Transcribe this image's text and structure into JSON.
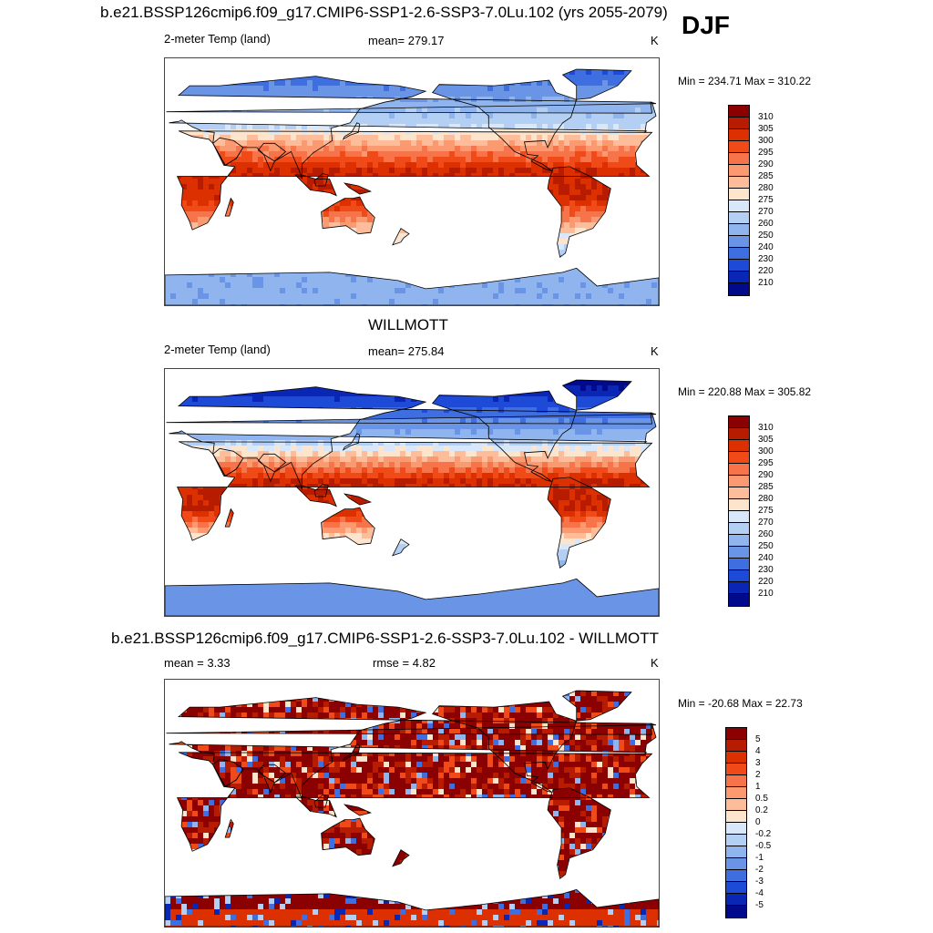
{
  "season": "DJF",
  "panels": [
    {
      "title": "b.e21.BSSP126cmip6.f09_g17.CMIP6-SSP1-2.6-SSP3-7.0Lu.102 (yrs 2055-2079)",
      "left": "2-meter Temp (land)",
      "center": "mean= 279.17",
      "units": "K",
      "minmax": "Min = 234.71 Max = 310.22",
      "levels": [
        "310",
        "305",
        "300",
        "295",
        "290",
        "285",
        "280",
        "275",
        "270",
        "260",
        "250",
        "240",
        "230",
        "220",
        "210"
      ],
      "colors": [
        "#8b0000",
        "#b81c00",
        "#dc3000",
        "#f04a18",
        "#f7744a",
        "#fb9a70",
        "#fdbd9a",
        "#fde4cc",
        "#d8e8fa",
        "#b4cff4",
        "#8fb4ee",
        "#6a95e6",
        "#3f6ee0",
        "#1e4ad8",
        "#0a26b4",
        "#000a8a"
      ],
      "regime": "abs"
    },
    {
      "title": "WILLMOTT",
      "left": "2-meter Temp (land)",
      "center": "mean= 275.84",
      "units": "K",
      "minmax": "Min = 220.88 Max = 305.82",
      "levels": [
        "310",
        "305",
        "300",
        "295",
        "290",
        "285",
        "280",
        "275",
        "270",
        "260",
        "250",
        "240",
        "230",
        "220",
        "210"
      ],
      "colors": [
        "#8b0000",
        "#b81c00",
        "#dc3000",
        "#f04a18",
        "#f7744a",
        "#fb9a70",
        "#fdbd9a",
        "#fde4cc",
        "#d8e8fa",
        "#b4cff4",
        "#8fb4ee",
        "#6a95e6",
        "#3f6ee0",
        "#1e4ad8",
        "#0a26b4",
        "#000a8a"
      ],
      "regime": "obs"
    },
    {
      "title": "b.e21.BSSP126cmip6.f09_g17.CMIP6-SSP1-2.6-SSP3-7.0Lu.102 - WILLMOTT",
      "left": "mean =   3.33",
      "center": "rmse =   4.82",
      "units": "K",
      "minmax": "Min = -20.68 Max =  22.73",
      "levels": [
        "5",
        "4",
        "3",
        "2",
        "1",
        "0.5",
        "0.2",
        "0",
        "-0.2",
        "-0.5",
        "-1",
        "-2",
        "-3",
        "-4",
        "-5"
      ],
      "colors": [
        "#8b0000",
        "#b81c00",
        "#dc3000",
        "#f04a18",
        "#f7744a",
        "#fb9a70",
        "#fdbd9a",
        "#fde4cc",
        "#d8e8fa",
        "#b4cff4",
        "#8fb4ee",
        "#6a95e6",
        "#3f6ee0",
        "#1e4ad8",
        "#0a26b4",
        "#000a8a"
      ],
      "regime": "diff"
    }
  ]
}
